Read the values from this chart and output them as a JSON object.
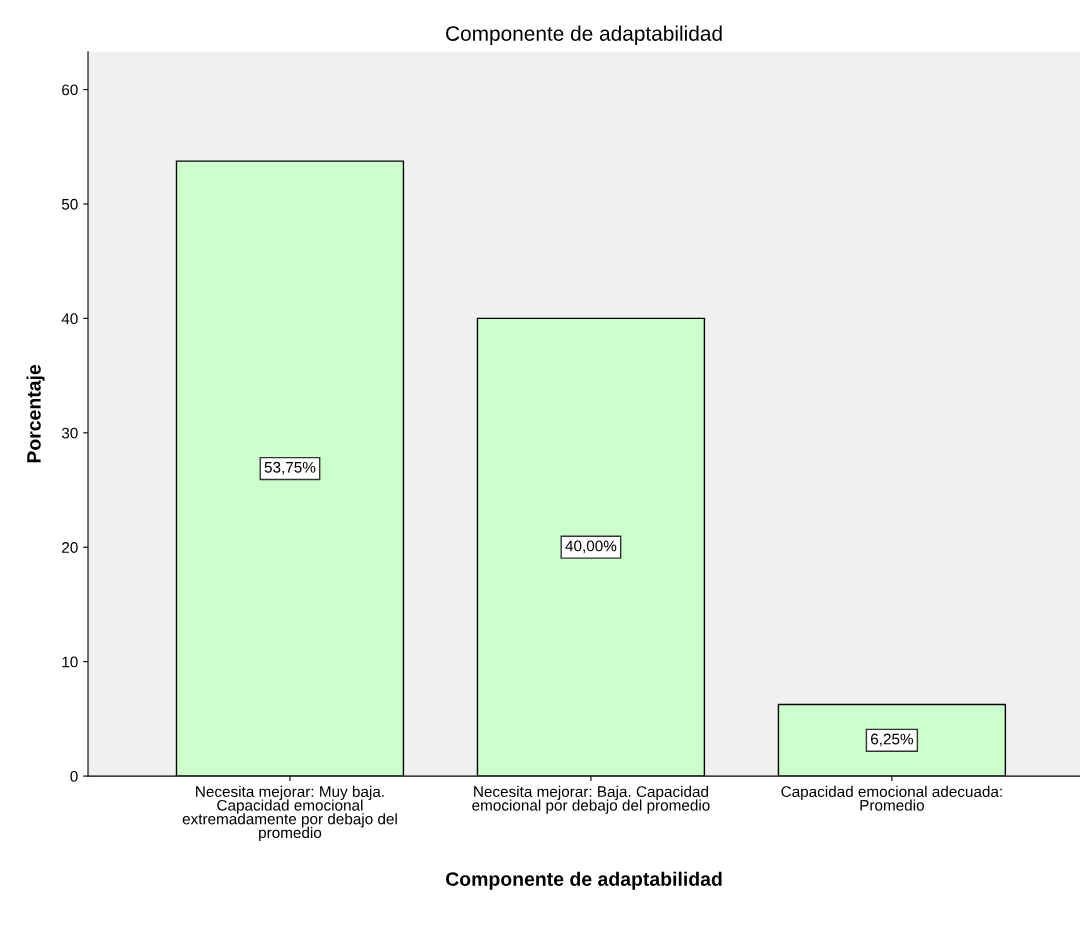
{
  "chart_data": {
    "type": "bar",
    "title": "Componente de adaptabilidad",
    "xlabel": "Componente de adaptabilidad",
    "ylabel": "Porcentaje",
    "categories": [
      "Necesita mejorar: Muy baja.\nCapacidad emocional\nextremadamente por debajo del\npromedio",
      "Necesita mejorar: Baja. Capacidad\nemocional por debajo del promedio",
      "Capacidad emocional adecuada:\nPromedio"
    ],
    "values": [
      53.75,
      40.0,
      6.25
    ],
    "color": "#ccffcc",
    "value_labels": [
      "53,75%",
      "40,00%",
      "6,25%"
    ],
    "ylim": [
      0,
      63.3
    ],
    "yticks": [
      0,
      10,
      20,
      30,
      40,
      50,
      60
    ],
    "grid": false,
    "legend": false
  }
}
